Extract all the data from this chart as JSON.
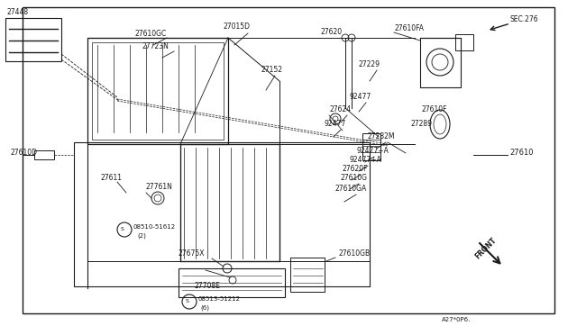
{
  "bg_color": "#ffffff",
  "line_color": "#1a1a1a",
  "fig_width": 6.4,
  "fig_height": 3.72,
  "dpi": 100,
  "corner_label": "SEC.276",
  "bottom_label": "A27*0P6.",
  "front_arrow_text": "FRONT",
  "gray": "#888888"
}
